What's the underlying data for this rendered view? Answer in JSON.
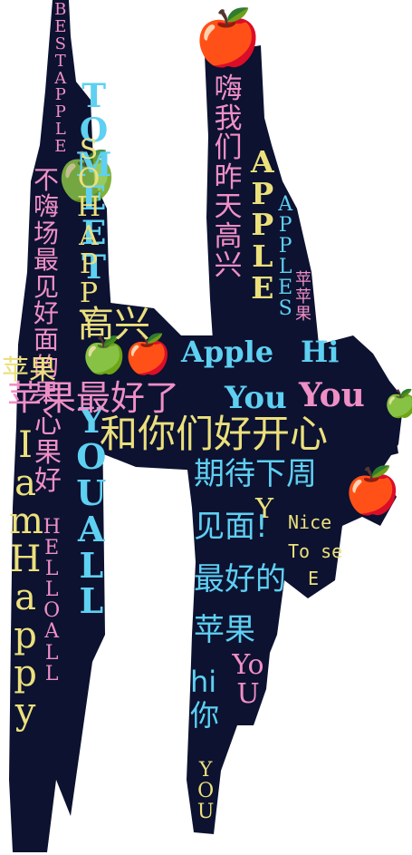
{
  "texts": {
    "best_apple": "BESTAPPLE",
    "to_meet": "TOMEET",
    "so_happy": "SOHAPPY",
    "nice_to_see": "不嗨场最见好面的果",
    "you_all": "YOUALL",
    "hello_all": "HELLOALL",
    "i_am_happy": "IamHappy",
    "hi_yesterday": "嗨我们昨天高兴",
    "apple": "APPLE",
    "apples": "APPLES",
    "apple_cn_small": "苹苹果",
    "apple_fruit": "苹果",
    "gao_xing": "高兴",
    "apple_word": "Apple",
    "hi_word": "Hi",
    "you_word": "You",
    "you_word2": "You",
    "best_apple_cn": "苹果最好了",
    "happy_meet": "和你们好开心",
    "heart_fruit": "心果好",
    "look_forward": "期待下周",
    "see_you": "见面!",
    "best_cn": "最好的",
    "apple_cn": "苹果",
    "hi_you_cn": "hi你",
    "you_small": "YOU",
    "yo_u": "YoU",
    "y_letter": "Y",
    "nice": "Nice",
    "to_see": "To se",
    "e_letter": "E"
  },
  "colors": {
    "background": "#0c1230",
    "cyan": "#5ed0f2",
    "pink": "#ef8fc6",
    "yellow": "#ece07c"
  },
  "icons": [
    "red-apple-icon",
    "green-apple-icon"
  ]
}
